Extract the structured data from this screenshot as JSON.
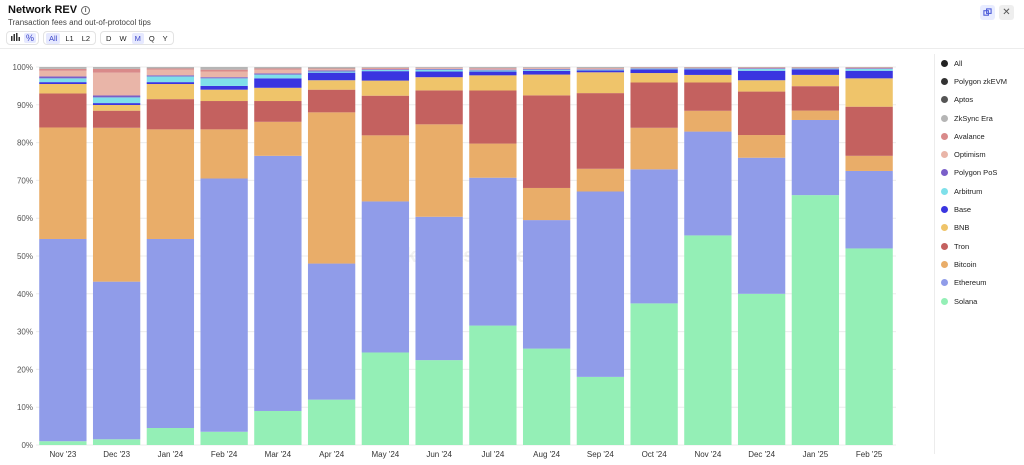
{
  "header": {
    "title": "Network REV",
    "subtitle": "Transaction fees and out-of-protocol tips"
  },
  "toolbar": {
    "chain_filters": [
      "All",
      "L1",
      "L2"
    ],
    "active_chain_filter": "All",
    "intervals": [
      "D",
      "W",
      "M",
      "Q",
      "Y"
    ],
    "active_interval": "M"
  },
  "watermark": "Blockworks Research",
  "legend": [
    {
      "label": "All",
      "color": "#222222"
    },
    {
      "label": "Polygon zkEVM",
      "color": "#333333"
    },
    {
      "label": "Aptos",
      "color": "#555555"
    },
    {
      "label": "ZkSync Era",
      "color": "#b5b5b5"
    },
    {
      "label": "Avalance",
      "color": "#d98a8a"
    },
    {
      "label": "Optimism",
      "color": "#e9b5a8"
    },
    {
      "label": "Polygon PoS",
      "color": "#7a5fc9"
    },
    {
      "label": "Arbitrum",
      "color": "#7fe0ea"
    },
    {
      "label": "Base",
      "color": "#3a35e0"
    },
    {
      "label": "BNB",
      "color": "#efc46a"
    },
    {
      "label": "Tron",
      "color": "#c4615f"
    },
    {
      "label": "Bitcoin",
      "color": "#e9ad69"
    },
    {
      "label": "Ethereum",
      "color": "#909ce9"
    },
    {
      "label": "Solana",
      "color": "#94efb6"
    }
  ],
  "chart_data": {
    "type": "bar",
    "stacked": true,
    "categories": [
      "Nov '23",
      "Dec '23",
      "Jan '24",
      "Feb '24",
      "Mar '24",
      "Apr '24",
      "May '24",
      "Jun '24",
      "Jul '24",
      "Aug '24",
      "Sep '24",
      "Oct '24",
      "Nov '24",
      "Dec '24",
      "Jan '25",
      "Feb '25"
    ],
    "ylim": [
      0,
      100
    ],
    "yticks": [
      "0%",
      "10%",
      "20%",
      "30%",
      "40%",
      "50%",
      "60%",
      "70%",
      "80%",
      "90%",
      "100%"
    ],
    "series": [
      {
        "name": "Solana",
        "color": "#94efb6",
        "values": [
          1,
          1.5,
          4.5,
          3.5,
          9,
          12,
          24.5,
          22.5,
          31.5,
          25.5,
          18,
          37.5,
          55.5,
          40,
          66.5,
          52
        ]
      },
      {
        "name": "Ethereum",
        "color": "#909ce9",
        "values": [
          53.5,
          41.5,
          50,
          67,
          67.5,
          36,
          40,
          38,
          39,
          34,
          49,
          35.5,
          27.5,
          36,
          20,
          20.5
        ]
      },
      {
        "name": "Bitcoin",
        "color": "#e9ad69",
        "values": [
          29.5,
          40.5,
          29,
          13,
          9,
          40,
          17.5,
          24.5,
          9,
          8.5,
          6,
          11,
          5.5,
          6,
          2.5,
          4
        ]
      },
      {
        "name": "Tron",
        "color": "#c4615f",
        "values": [
          9,
          4.5,
          8,
          7.5,
          5.5,
          6,
          10.5,
          9,
          14,
          24.5,
          20,
          12,
          7.5,
          11.5,
          6.5,
          13
        ]
      },
      {
        "name": "BNB",
        "color": "#efc46a",
        "values": [
          2.5,
          1.5,
          4,
          3,
          3.5,
          2.5,
          4,
          3.5,
          4,
          5.5,
          5.5,
          2.5,
          2,
          3,
          3,
          7.5
        ]
      },
      {
        "name": "Base",
        "color": "#3a35e0",
        "values": [
          0.5,
          0.5,
          0.5,
          1,
          2.5,
          2,
          2.5,
          1.5,
          1,
          1,
          0.5,
          1,
          1.5,
          2.5,
          1.5,
          2
        ]
      },
      {
        "name": "Arbitrum",
        "color": "#7fe0ea",
        "values": [
          1,
          1.5,
          1.5,
          2,
          1,
          0.3,
          0.3,
          0.5,
          0.3,
          0.3,
          0.2,
          0.2,
          0.2,
          0.5,
          0.2,
          0.5
        ]
      },
      {
        "name": "Polygon PoS",
        "color": "#7a5fc9",
        "values": [
          0.5,
          0.5,
          0.3,
          0.3,
          0.3,
          0.3,
          0.2,
          0.2,
          0.2,
          0.2,
          0.1,
          0.1,
          0.1,
          0.2,
          0.1,
          0.2
        ]
      },
      {
        "name": "Optimism",
        "color": "#e9b5a8",
        "values": [
          1.5,
          6,
          1.5,
          1.5,
          1,
          0.3,
          0.2,
          0.2,
          0.2,
          0.2,
          0.2,
          0.1,
          0.1,
          0.1,
          0.1,
          0.1
        ]
      },
      {
        "name": "Avalance",
        "color": "#d98a8a",
        "values": [
          0.5,
          1,
          0.3,
          0.5,
          0.3,
          0.2,
          0.2,
          0.1,
          0.2,
          0.1,
          0.1,
          0.1,
          0.1,
          0.1,
          0.1,
          0.1
        ]
      },
      {
        "name": "ZkSync Era",
        "color": "#b5b5b5",
        "values": [
          0.5,
          0.5,
          0.4,
          0.7,
          0.4,
          0.4,
          0.2,
          0.2,
          0.3,
          0.2,
          0.3,
          0.1,
          0.1,
          0.1,
          0.1,
          0.1
        ]
      },
      {
        "name": "Aptos",
        "color": "#555555",
        "values": [
          0,
          0,
          0,
          0,
          0,
          0,
          0,
          0,
          0,
          0,
          0,
          0,
          0,
          0,
          0,
          0
        ]
      },
      {
        "name": "Polygon zkEVM",
        "color": "#333333",
        "values": [
          0,
          0,
          0,
          0,
          0,
          0,
          0,
          0,
          0,
          0,
          0,
          0,
          0,
          0,
          0,
          0
        ]
      }
    ]
  }
}
